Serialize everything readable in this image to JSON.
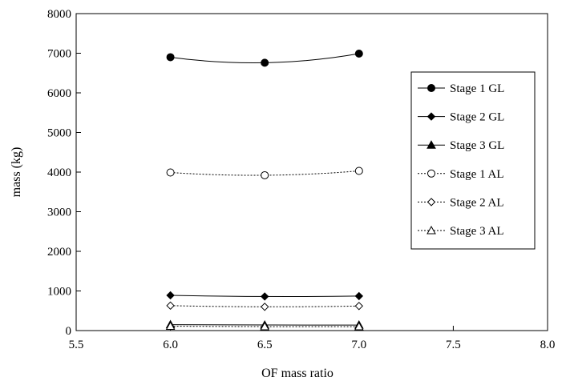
{
  "chart_data": {
    "type": "line",
    "title": "",
    "xlabel": "OF mass ratio",
    "ylabel": "mass (kg)",
    "xlim": [
      5.5,
      8.0
    ],
    "ylim": [
      0,
      8000
    ],
    "x_ticks": [
      "5.5",
      "6.0",
      "6.5",
      "7.0",
      "7.5",
      "8.0"
    ],
    "y_ticks": [
      "0",
      "1000",
      "2000",
      "3000",
      "4000",
      "5000",
      "6000",
      "7000",
      "8000"
    ],
    "grid": false,
    "legend_position": "right",
    "x": [
      6.0,
      6.5,
      7.0
    ],
    "series": [
      {
        "name": "Stage 1 GL",
        "values": [
          6900,
          6760,
          6990
        ],
        "marker": "circle-filled",
        "line": "solid"
      },
      {
        "name": "Stage 2 GL",
        "values": [
          890,
          860,
          870
        ],
        "marker": "diamond-filled",
        "line": "solid"
      },
      {
        "name": "Stage 3 GL",
        "values": [
          150,
          140,
          140
        ],
        "marker": "triangle-filled",
        "line": "solid"
      },
      {
        "name": "Stage 1 AL",
        "values": [
          3990,
          3920,
          4030
        ],
        "marker": "circle-open",
        "line": "dotted"
      },
      {
        "name": "Stage 2 AL",
        "values": [
          630,
          600,
          620
        ],
        "marker": "diamond-open",
        "line": "dotted"
      },
      {
        "name": "Stage 3 AL",
        "values": [
          110,
          100,
          100
        ],
        "marker": "triangle-open",
        "line": "dotted"
      }
    ]
  }
}
